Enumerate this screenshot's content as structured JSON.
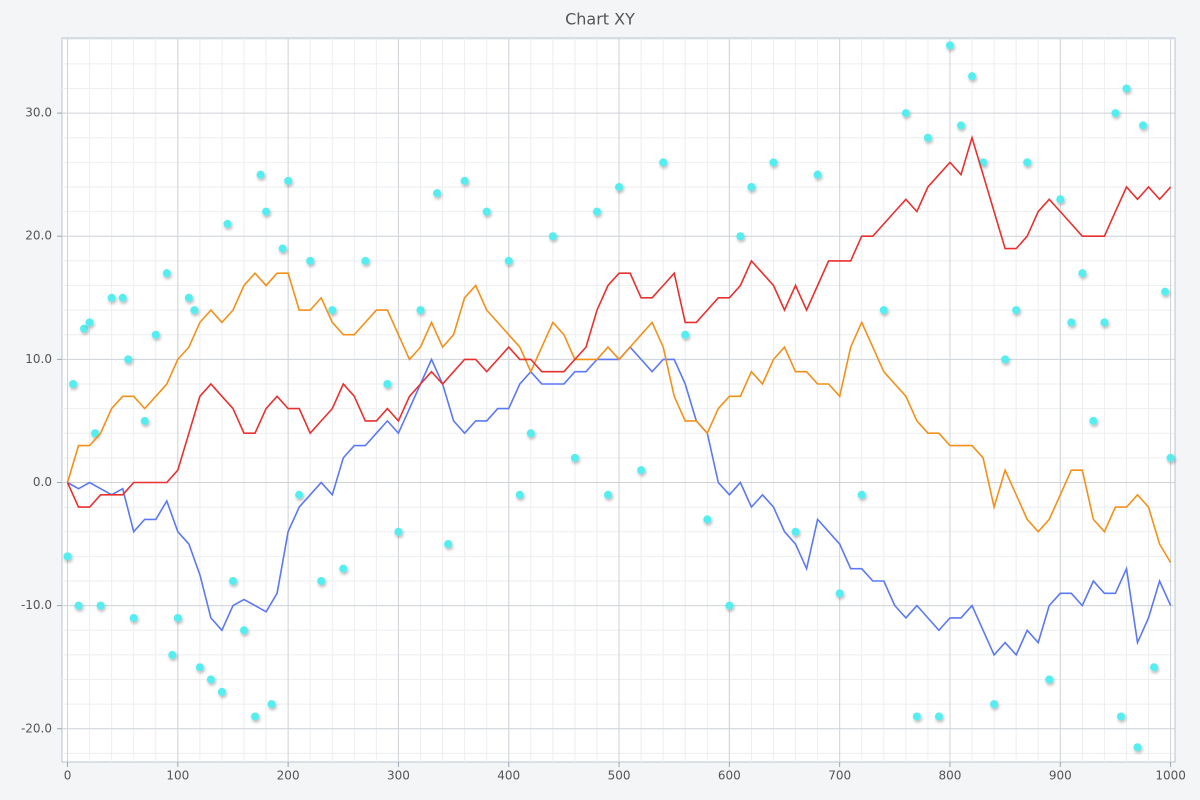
{
  "chart_data": {
    "type": "line",
    "title": "Chart XY",
    "grid": true,
    "minor_grid": true,
    "xlim": [
      -5,
      1004
    ],
    "ylim": [
      -22.7,
      36.1
    ],
    "xticks": [
      0,
      100,
      200,
      300,
      400,
      500,
      600,
      700,
      800,
      900,
      1000
    ],
    "yticks": [
      {
        "value": -20,
        "label": "-20.0"
      },
      {
        "value": -10,
        "label": "-10.0"
      },
      {
        "value": 0,
        "label": "0.0"
      },
      {
        "value": 10,
        "label": "10.0"
      },
      {
        "value": 20,
        "label": "20.0"
      },
      {
        "value": 30,
        "label": "30.0"
      }
    ],
    "x": [
      0,
      10,
      20,
      30,
      40,
      50,
      60,
      70,
      80,
      90,
      100,
      110,
      120,
      130,
      140,
      150,
      160,
      170,
      180,
      190,
      200,
      210,
      220,
      230,
      240,
      250,
      260,
      270,
      280,
      290,
      300,
      310,
      320,
      330,
      340,
      350,
      360,
      370,
      380,
      390,
      400,
      410,
      420,
      430,
      440,
      450,
      460,
      470,
      480,
      490,
      500,
      510,
      520,
      530,
      540,
      550,
      560,
      570,
      580,
      590,
      600,
      610,
      620,
      630,
      640,
      650,
      660,
      670,
      680,
      690,
      700,
      710,
      720,
      730,
      740,
      750,
      760,
      770,
      780,
      790,
      800,
      810,
      820,
      830,
      840,
      850,
      860,
      870,
      880,
      890,
      900,
      910,
      920,
      930,
      940,
      950,
      960,
      970,
      980,
      990,
      1000
    ],
    "series": [
      {
        "type": "scatter",
        "color": "#55eef0",
        "x": [
          0,
          5,
          10,
          15,
          20,
          25,
          30,
          40,
          50,
          55,
          60,
          70,
          80,
          90,
          95,
          100,
          110,
          115,
          120,
          130,
          140,
          145,
          150,
          160,
          170,
          175,
          180,
          185,
          195,
          200,
          210,
          220,
          230,
          240,
          250,
          270,
          290,
          300,
          320,
          335,
          345,
          360,
          380,
          400,
          410,
          420,
          440,
          460,
          480,
          490,
          500,
          520,
          540,
          560,
          580,
          600,
          610,
          620,
          640,
          660,
          680,
          700,
          720,
          740,
          760,
          770,
          780,
          790,
          800,
          810,
          820,
          830,
          840,
          850,
          860,
          870,
          890,
          900,
          910,
          920,
          930,
          940,
          950,
          955,
          960,
          970,
          975,
          985,
          995,
          1000
        ],
        "values": [
          -6,
          8,
          -10,
          12.5,
          13,
          4,
          -10,
          15,
          15,
          10,
          -11,
          5,
          12,
          17,
          -14,
          -11,
          15,
          14,
          -15,
          -16,
          -17,
          21,
          -8,
          -12,
          -19,
          25,
          22,
          -18,
          19,
          24.5,
          -1,
          18,
          -8,
          14,
          -7,
          18,
          8,
          -4,
          14,
          23.5,
          -5,
          24.5,
          22,
          18,
          -1,
          4,
          20,
          2,
          22,
          -1,
          24,
          1,
          26,
          12,
          -3,
          -10,
          20,
          24,
          26,
          -4,
          25,
          -9,
          -1,
          14,
          30,
          -19,
          28,
          -19,
          35.5,
          29,
          33,
          26,
          -18,
          10,
          14,
          26,
          -16,
          23,
          13,
          17,
          5,
          13,
          30,
          -19,
          32,
          -21.5,
          29,
          -15,
          15.5,
          2
        ]
      },
      {
        "color": "#5b78f5",
        "values": [
          0,
          -0.5,
          0,
          -0.5,
          -1,
          -0.5,
          -4,
          -3,
          -3,
          -1.5,
          -4,
          -5,
          -7.5,
          -11,
          -12,
          -10,
          -9.5,
          -10,
          -10.5,
          -9,
          -4,
          -2,
          -1,
          0,
          -1,
          2,
          3,
          3,
          4,
          5,
          4,
          6,
          8,
          10,
          8,
          5,
          4,
          5,
          5,
          6,
          6,
          8,
          9,
          8,
          8,
          8,
          9,
          9,
          10,
          10,
          10,
          11,
          10,
          9,
          10,
          10,
          8,
          5,
          4,
          0,
          -1,
          0,
          -2,
          -1,
          -2,
          -4,
          -5,
          -7,
          -3,
          -4,
          -5,
          -7,
          -7,
          -8,
          -8,
          -10,
          -11,
          -10,
          -11,
          -12,
          -11,
          -11,
          -10,
          -12,
          -14,
          -13,
          -14,
          -12,
          -13,
          -10,
          -9,
          -9,
          -10,
          -8,
          -9,
          -9,
          -7,
          -13,
          -11,
          -8,
          -10
        ]
      },
      {
        "color": "#f39018",
        "values": [
          0,
          3,
          3,
          4,
          6,
          7,
          7,
          6,
          7,
          8,
          10,
          11,
          13,
          14,
          13,
          14,
          16,
          17,
          16,
          17,
          17,
          14,
          14,
          15,
          13,
          12,
          12,
          13,
          14,
          14,
          12,
          10,
          11,
          13,
          11,
          12,
          15,
          16,
          14,
          13,
          12,
          11,
          9,
          11,
          13,
          12,
          10,
          10,
          10,
          11,
          10,
          11,
          12,
          13,
          11,
          7,
          5,
          5,
          4,
          6,
          7,
          7,
          9,
          8,
          10,
          11,
          9,
          9,
          8,
          8,
          7,
          11,
          13,
          11,
          9,
          8,
          7,
          5,
          4,
          4,
          3,
          3,
          3,
          2,
          -2,
          1,
          -1,
          -3,
          -4,
          -3,
          -1,
          1,
          1,
          -3,
          -4,
          -2,
          -2,
          -1,
          -2,
          -5,
          -6.5
        ]
      },
      {
        "color": "#e8302f",
        "values": [
          0,
          -2,
          -2,
          -1,
          -1,
          -1,
          0,
          0,
          0,
          0,
          1,
          4,
          7,
          8,
          7,
          6,
          4,
          4,
          6,
          7,
          6,
          6,
          4,
          5,
          6,
          8,
          7,
          5,
          5,
          6,
          5,
          7,
          8,
          9,
          8,
          9,
          10,
          10,
          9,
          10,
          11,
          10,
          10,
          9,
          9,
          9,
          10,
          11,
          14,
          16,
          17,
          17,
          15,
          15,
          16,
          17,
          13,
          13,
          14,
          15,
          15,
          16,
          18,
          17,
          16,
          14,
          16,
          14,
          16,
          18,
          18,
          18,
          20,
          20,
          21,
          22,
          23,
          22,
          24,
          25,
          26,
          25,
          28,
          25,
          22,
          19,
          19,
          20,
          22,
          23,
          22,
          21,
          20,
          20,
          20,
          22,
          24,
          23,
          24,
          23,
          24
        ]
      }
    ]
  }
}
